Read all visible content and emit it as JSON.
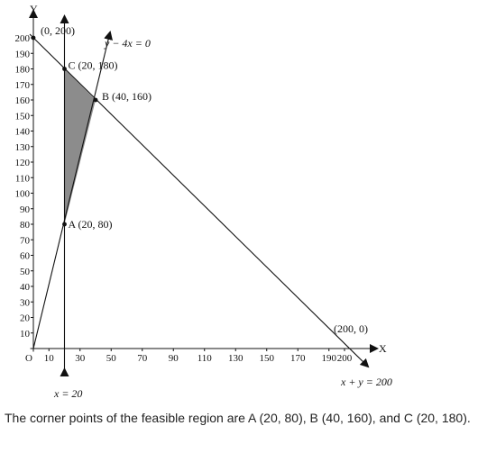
{
  "chart_data": {
    "type": "line",
    "title": "",
    "xlabel": "X",
    "ylabel": "Y",
    "origin_label": "O",
    "xlim": [
      0,
      205
    ],
    "ylim": [
      0,
      205
    ],
    "x_ticks": [
      10,
      30,
      50,
      70,
      90,
      110,
      130,
      150,
      170,
      190,
      200
    ],
    "y_ticks": [
      10,
      20,
      30,
      40,
      50,
      60,
      70,
      80,
      90,
      100,
      110,
      120,
      130,
      140,
      150,
      160,
      170,
      180,
      190,
      200
    ],
    "lines": [
      {
        "label": "y − 4x = 0",
        "x": [
          0,
          50
        ],
        "y": [
          0,
          200
        ]
      },
      {
        "label": "x + y = 200",
        "x": [
          0,
          205
        ],
        "y": [
          200,
          -5
        ]
      },
      {
        "label": "x = 20",
        "x": [
          20,
          20
        ],
        "y": [
          -3,
          200
        ]
      }
    ],
    "feasible_region": [
      [
        20,
        80
      ],
      [
        40,
        160
      ],
      [
        20,
        180
      ]
    ],
    "points": [
      {
        "label": "(0, 200)",
        "x": 0,
        "y": 200
      },
      {
        "label": "C (20, 180)",
        "x": 20,
        "y": 180
      },
      {
        "label": "B (40, 160)",
        "x": 40,
        "y": 160
      },
      {
        "label": "A (20, 80)",
        "x": 20,
        "y": 80
      },
      {
        "label": "(200, 0)",
        "x": 200,
        "y": 0
      }
    ],
    "colors": {
      "region": "#8c8c8c",
      "line": "#111111"
    }
  },
  "caption": "The corner points of the feasible region are A (20, 80), B (40, 160), and C (20, 180)."
}
